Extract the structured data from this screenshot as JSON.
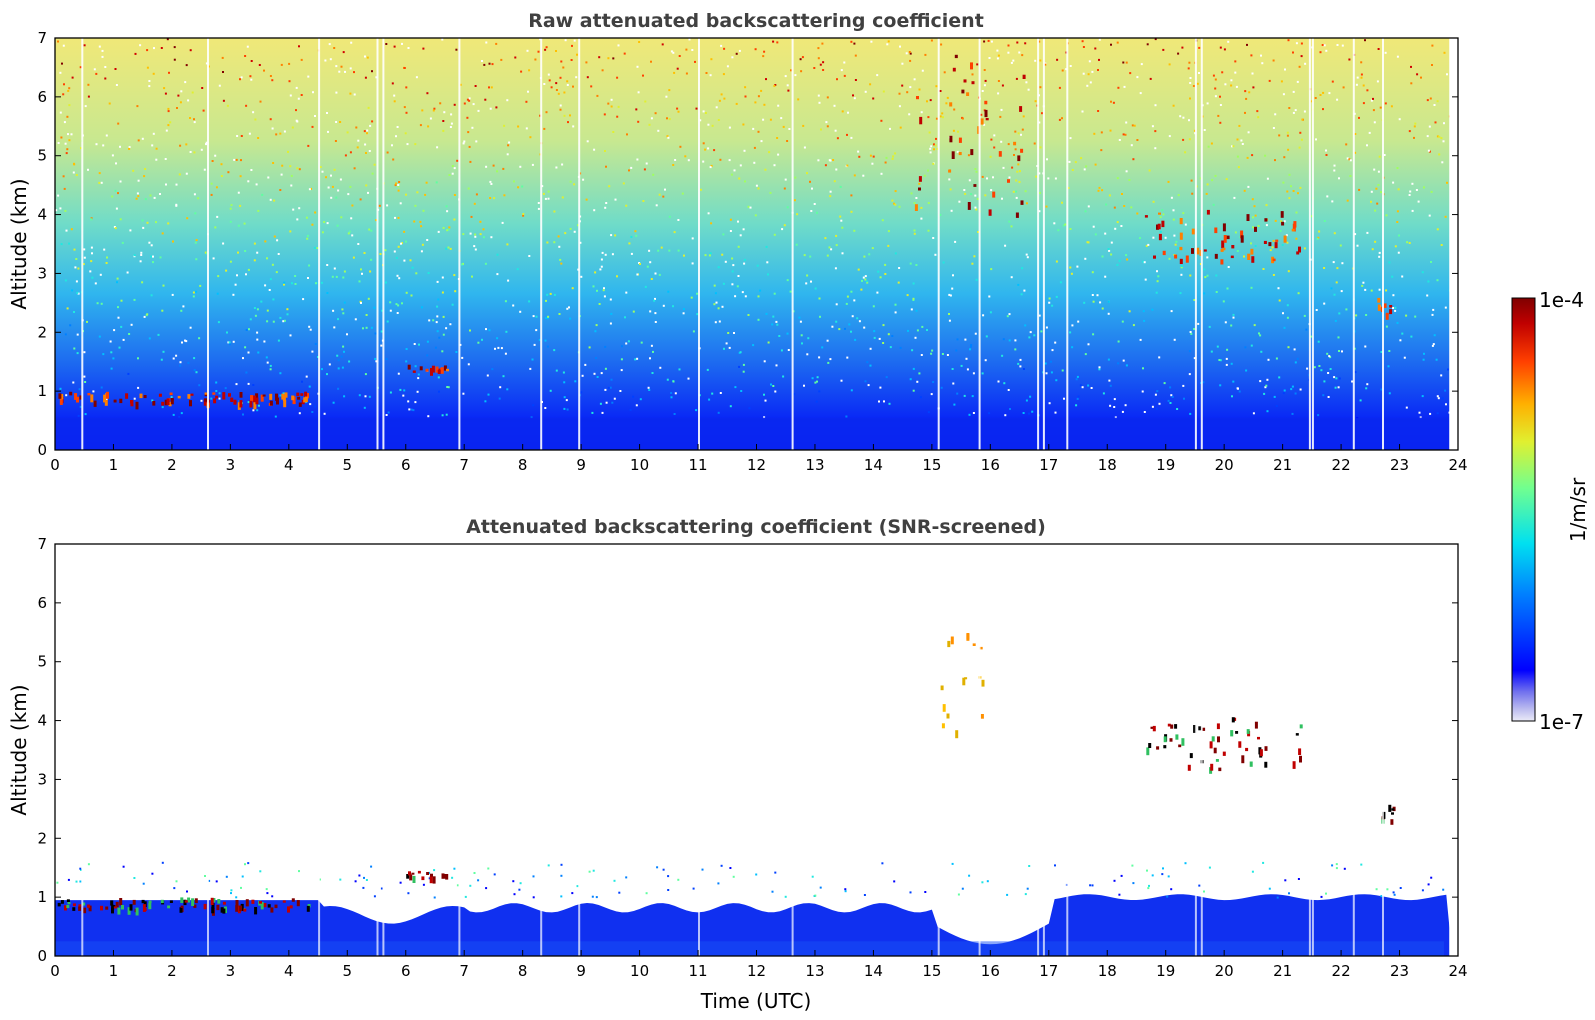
{
  "chart_data": [
    {
      "type": "heatmap",
      "title": "Raw attenuated backscattering coefficient",
      "xlabel": "",
      "ylabel": "Altitude (km)",
      "xlim": [
        0,
        24
      ],
      "ylim": [
        0,
        7
      ],
      "xticks": [
        "0",
        "1",
        "2",
        "3",
        "4",
        "5",
        "6",
        "7",
        "8",
        "9",
        "10",
        "11",
        "12",
        "13",
        "14",
        "15",
        "16",
        "17",
        "18",
        "19",
        "20",
        "21",
        "22",
        "23",
        "24"
      ],
      "yticks": [
        "0",
        "1",
        "2",
        "3",
        "4",
        "5",
        "6",
        "7"
      ],
      "scale": "log",
      "features": [
        {
          "x": [
            0.0,
            4.3
          ],
          "y": [
            0.8,
            1.0
          ],
          "level": "high"
        },
        {
          "x": [
            6.0,
            6.7
          ],
          "y": [
            1.35,
            1.45
          ],
          "level": "high"
        },
        {
          "x": [
            14.7,
            16.6
          ],
          "y": [
            3.8,
            7.0
          ],
          "level": "high"
        },
        {
          "x": [
            18.6,
            21.3
          ],
          "y": [
            3.2,
            4.1
          ],
          "level": "high"
        },
        {
          "x": [
            22.6,
            22.9
          ],
          "y": [
            2.3,
            2.6
          ],
          "level": "high"
        }
      ]
    },
    {
      "type": "heatmap",
      "title": "Attenuated backscattering coefficient (SNR-screened)",
      "xlabel": "Time (UTC)",
      "ylabel": "Altitude (km)",
      "xlim": [
        0,
        24
      ],
      "ylim": [
        0,
        7
      ],
      "xticks": [
        "0",
        "1",
        "2",
        "3",
        "4",
        "5",
        "6",
        "7",
        "8",
        "9",
        "10",
        "11",
        "12",
        "13",
        "14",
        "15",
        "16",
        "17",
        "18",
        "19",
        "20",
        "21",
        "22",
        "23",
        "24"
      ],
      "yticks": [
        "0",
        "1",
        "2",
        "3",
        "4",
        "5",
        "6",
        "7"
      ],
      "scale": "log",
      "features": [
        {
          "x": [
            0.0,
            4.4
          ],
          "y": [
            0.8,
            1.0
          ],
          "level": "high"
        },
        {
          "x": [
            6.0,
            6.7
          ],
          "y": [
            1.35,
            1.45
          ],
          "level": "high"
        },
        {
          "x": [
            15.1,
            15.9
          ],
          "y": [
            3.7,
            5.6
          ],
          "level": "high"
        },
        {
          "x": [
            18.6,
            21.3
          ],
          "y": [
            3.2,
            4.1
          ],
          "level": "high"
        },
        {
          "x": [
            22.6,
            22.9
          ],
          "y": [
            2.3,
            2.6
          ],
          "level": "high"
        }
      ]
    }
  ],
  "colorbar": {
    "label": "1/m/sr",
    "max_label": "1e-4",
    "min_label": "1e-7",
    "range": [
      1e-07,
      0.0001
    ],
    "colormap": "jet",
    "low_color": "#e6e6f5",
    "high_color": "#800000"
  }
}
